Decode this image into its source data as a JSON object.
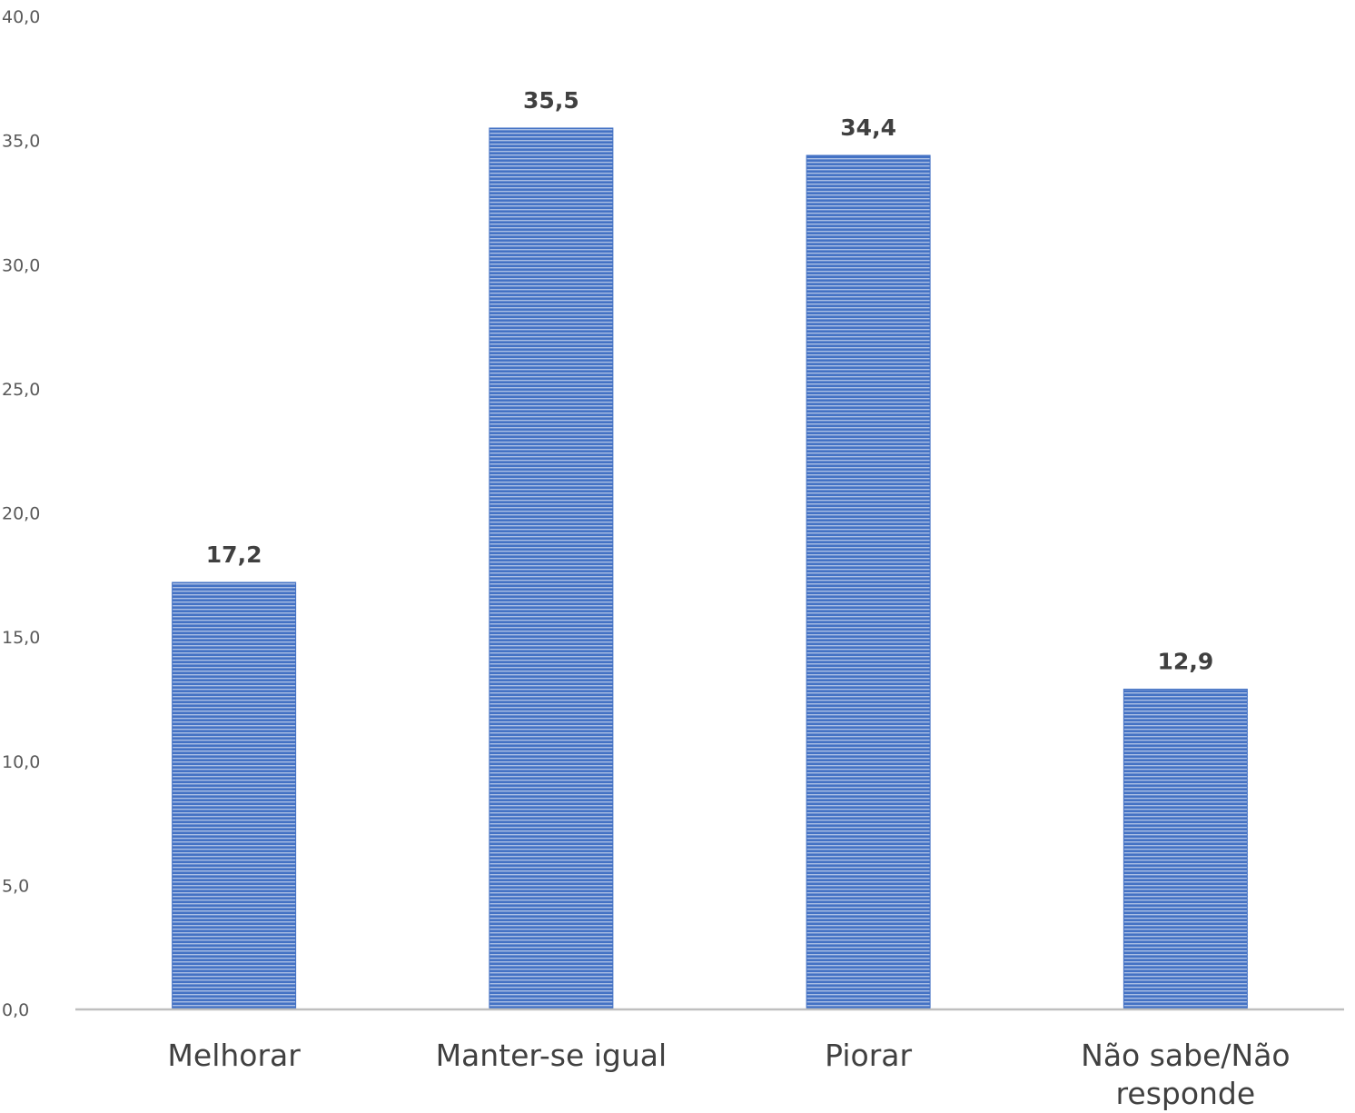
{
  "chart_data": {
    "type": "bar",
    "title": "",
    "xlabel": "",
    "ylabel": "",
    "categories": [
      [
        "Melhorar"
      ],
      [
        "Manter-se igual"
      ],
      [
        "Piorar"
      ],
      [
        "Não sabe/Não",
        "responde"
      ]
    ],
    "values": [
      17.2,
      35.5,
      34.4,
      12.9
    ],
    "value_labels": [
      "17,2",
      "35,5",
      "34,4",
      "12,9"
    ],
    "ylim": [
      0,
      40
    ],
    "yticks": [
      0,
      5,
      10,
      15,
      20,
      25,
      30,
      35,
      40
    ],
    "ytick_labels": [
      "0,0",
      "5,0",
      "10,0",
      "15,0",
      "20,0",
      "25,0",
      "30,0",
      "35,0",
      "40,0"
    ],
    "grid": false,
    "legend": "none",
    "colors": {
      "bar_fill": "#4472c4",
      "bar_stripe": "#ffffff",
      "axis_line": "#bfbfbf"
    }
  }
}
